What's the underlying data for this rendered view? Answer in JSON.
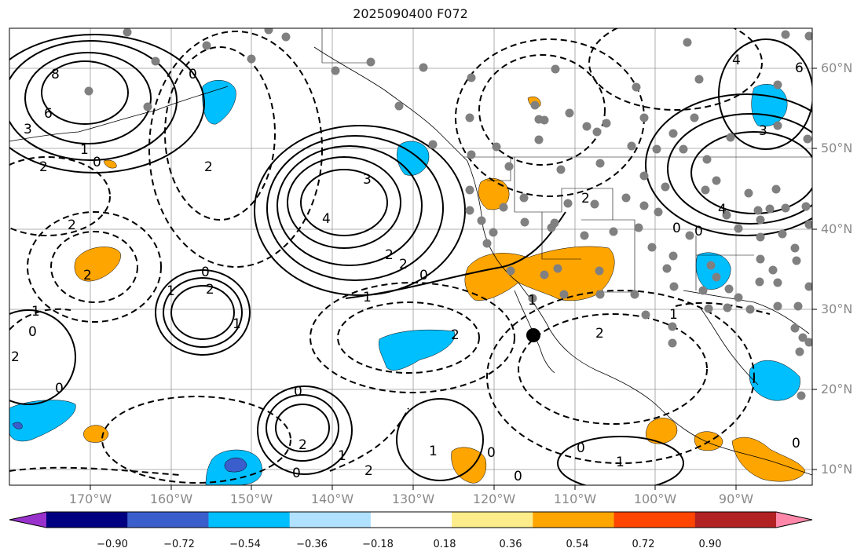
{
  "title": "2025090400 F072",
  "lat_labels": [
    "60°N",
    "50°N",
    "40°N",
    "30°N",
    "20°N",
    "10°N"
  ],
  "lon_labels": [
    "170°W",
    "160°W",
    "150°W",
    "140°W",
    "130°W",
    "120°W",
    "110°W",
    "100°W",
    "90°W"
  ],
  "contour_labels": [
    "8",
    "6",
    "3",
    "2",
    "0",
    "1",
    "2",
    "0",
    "2",
    "3",
    "4",
    "2",
    "2",
    "0",
    "1",
    "2",
    "0",
    "2",
    "1",
    "0",
    "1",
    "2",
    "0",
    "1",
    "2",
    "2",
    "1",
    "0",
    "0",
    "1",
    "2",
    "0",
    "0",
    "1",
    "2",
    "6",
    "4",
    "3",
    "4",
    "2",
    "0",
    "0",
    "1",
    "1",
    "0",
    "0"
  ],
  "colorbar": {
    "ticks": [
      "−0.90",
      "−0.72",
      "−0.54",
      "−0.36",
      "−0.18",
      "0.18",
      "0.36",
      "0.54",
      "0.72",
      "0.90"
    ],
    "colors": [
      "#9932cc",
      "#000080",
      "#3a5fcd",
      "#00bfff",
      "#b0e2ff",
      "#ffffff",
      "#fdec8a",
      "#ffa500",
      "#ff4500",
      "#b22222",
      "#ff88aa"
    ]
  }
}
